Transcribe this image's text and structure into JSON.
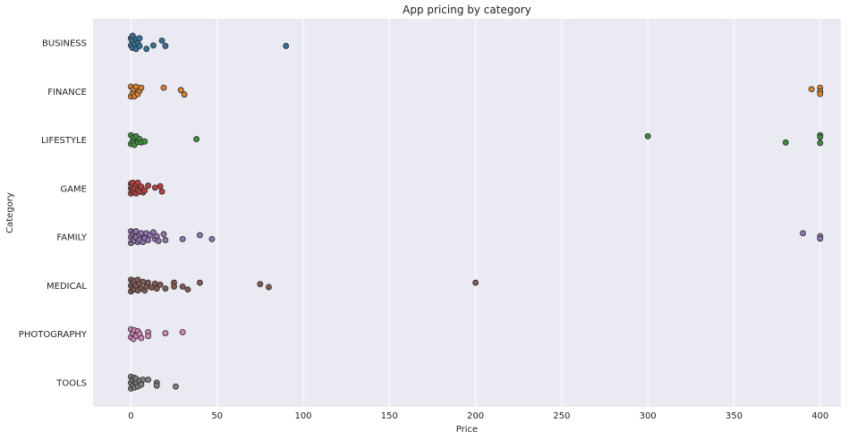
{
  "chart_data": {
    "type": "scatter",
    "title": "App pricing by category",
    "xlabel": "Price",
    "ylabel": "Category",
    "xlim": [
      -22,
      412
    ],
    "xticks": [
      0,
      50,
      100,
      150,
      200,
      250,
      300,
      350,
      400
    ],
    "grid": true,
    "background": "#eaeaf2",
    "categories": [
      "BUSINESS",
      "FINANCE",
      "LIFESTYLE",
      "GAME",
      "FAMILY",
      "MEDICAL",
      "PHOTOGRAPHY",
      "TOOLS"
    ],
    "colors": [
      "#3274a1",
      "#e1812c",
      "#3a923a",
      "#c03d3e",
      "#9372b2",
      "#845b53",
      "#d684bd",
      "#7f7f7f"
    ],
    "series": [
      {
        "category": "BUSINESS",
        "points": [
          {
            "x": 0,
            "j": -0.1
          },
          {
            "x": 0,
            "j": 0.05
          },
          {
            "x": 0.5,
            "j": -0.05
          },
          {
            "x": 1,
            "j": 0.1
          },
          {
            "x": 1,
            "j": -0.15
          },
          {
            "x": 2,
            "j": 0.02
          },
          {
            "x": 3,
            "j": -0.08
          },
          {
            "x": 3,
            "j": 0.12
          },
          {
            "x": 4,
            "j": 0.0
          },
          {
            "x": 5,
            "j": -0.1
          },
          {
            "x": 5,
            "j": 0.06
          },
          {
            "x": 9,
            "j": 0.12
          },
          {
            "x": 13,
            "j": 0.05
          },
          {
            "x": 18,
            "j": -0.05
          },
          {
            "x": 20,
            "j": 0.06
          },
          {
            "x": 90,
            "j": 0.06
          }
        ]
      },
      {
        "category": "FINANCE",
        "points": [
          {
            "x": 0,
            "j": -0.1
          },
          {
            "x": 0,
            "j": 0.1
          },
          {
            "x": 1,
            "j": 0.03
          },
          {
            "x": 1.5,
            "j": -0.05
          },
          {
            "x": 2,
            "j": 0.1
          },
          {
            "x": 3,
            "j": -0.1
          },
          {
            "x": 4,
            "j": 0.05
          },
          {
            "x": 5,
            "j": -0.02
          },
          {
            "x": 6,
            "j": -0.08
          },
          {
            "x": 19,
            "j": -0.08
          },
          {
            "x": 29,
            "j": -0.03
          },
          {
            "x": 31,
            "j": 0.06
          },
          {
            "x": 395,
            "j": -0.05
          },
          {
            "x": 400,
            "j": -0.08
          },
          {
            "x": 400,
            "j": 0.0
          },
          {
            "x": 400,
            "j": 0.05
          }
        ]
      },
      {
        "category": "LIFESTYLE",
        "points": [
          {
            "x": 0,
            "j": -0.1
          },
          {
            "x": 0,
            "j": 0.08
          },
          {
            "x": 1,
            "j": 0.02
          },
          {
            "x": 1.5,
            "j": -0.05
          },
          {
            "x": 2,
            "j": 0.1
          },
          {
            "x": 3,
            "j": -0.08
          },
          {
            "x": 4,
            "j": 0.04
          },
          {
            "x": 5,
            "j": -0.02
          },
          {
            "x": 6,
            "j": 0.05
          },
          {
            "x": 8,
            "j": 0.03
          },
          {
            "x": 38,
            "j": -0.02
          },
          {
            "x": 300,
            "j": -0.08
          },
          {
            "x": 380,
            "j": 0.05
          },
          {
            "x": 400,
            "j": -0.1
          },
          {
            "x": 400,
            "j": -0.06
          },
          {
            "x": 400,
            "j": 0.06
          }
        ]
      },
      {
        "category": "GAME",
        "points": [
          {
            "x": 0,
            "j": -0.1
          },
          {
            "x": 0,
            "j": 0.0
          },
          {
            "x": 0,
            "j": 0.1
          },
          {
            "x": 0.5,
            "j": -0.05
          },
          {
            "x": 1,
            "j": 0.05
          },
          {
            "x": 1,
            "j": -0.12
          },
          {
            "x": 2,
            "j": 0.08
          },
          {
            "x": 2,
            "j": -0.02
          },
          {
            "x": 3,
            "j": 0.1
          },
          {
            "x": 3,
            "j": -0.08
          },
          {
            "x": 4,
            "j": 0.03
          },
          {
            "x": 4,
            "j": -0.12
          },
          {
            "x": 5,
            "j": 0.06
          },
          {
            "x": 6,
            "j": -0.04
          },
          {
            "x": 7,
            "j": 0.08
          },
          {
            "x": 8,
            "j": 0.04
          },
          {
            "x": 10,
            "j": -0.06
          },
          {
            "x": 14,
            "j": -0.02
          },
          {
            "x": 17,
            "j": -0.05
          },
          {
            "x": 18,
            "j": 0.06
          }
        ]
      },
      {
        "category": "FAMILY",
        "points": [
          {
            "x": 0,
            "j": -0.12
          },
          {
            "x": 0,
            "j": 0.0
          },
          {
            "x": 0,
            "j": 0.12
          },
          {
            "x": 1,
            "j": -0.06
          },
          {
            "x": 1,
            "j": 0.06
          },
          {
            "x": 2,
            "j": -0.1
          },
          {
            "x": 2,
            "j": 0.08
          },
          {
            "x": 3,
            "j": 0.0
          },
          {
            "x": 3,
            "j": -0.12
          },
          {
            "x": 4,
            "j": 0.1
          },
          {
            "x": 5,
            "j": -0.04
          },
          {
            "x": 5,
            "j": 0.06
          },
          {
            "x": 6,
            "j": -0.08
          },
          {
            "x": 7,
            "j": 0.1
          },
          {
            "x": 8,
            "j": 0.02
          },
          {
            "x": 9,
            "j": -0.08
          },
          {
            "x": 10,
            "j": 0.06
          },
          {
            "x": 11,
            "j": -0.04
          },
          {
            "x": 13,
            "j": -0.1
          },
          {
            "x": 14,
            "j": 0.04
          },
          {
            "x": 15,
            "j": -0.02
          },
          {
            "x": 16,
            "j": 0.08
          },
          {
            "x": 19,
            "j": -0.06
          },
          {
            "x": 20,
            "j": 0.06
          },
          {
            "x": 30,
            "j": 0.04
          },
          {
            "x": 40,
            "j": -0.04
          },
          {
            "x": 47,
            "j": 0.04
          },
          {
            "x": 390,
            "j": -0.08
          },
          {
            "x": 400,
            "j": -0.02
          },
          {
            "x": 400,
            "j": 0.03
          }
        ]
      },
      {
        "category": "MEDICAL",
        "points": [
          {
            "x": 0,
            "j": -0.12
          },
          {
            "x": 0,
            "j": 0.0
          },
          {
            "x": 0,
            "j": 0.12
          },
          {
            "x": 1,
            "j": -0.06
          },
          {
            "x": 1,
            "j": 0.06
          },
          {
            "x": 2,
            "j": -0.1
          },
          {
            "x": 2,
            "j": 0.08
          },
          {
            "x": 3,
            "j": 0.0
          },
          {
            "x": 4,
            "j": -0.12
          },
          {
            "x": 4,
            "j": 0.1
          },
          {
            "x": 5,
            "j": -0.04
          },
          {
            "x": 6,
            "j": 0.06
          },
          {
            "x": 7,
            "j": -0.08
          },
          {
            "x": 8,
            "j": 0.1
          },
          {
            "x": 9,
            "j": 0.02
          },
          {
            "x": 10,
            "j": -0.06
          },
          {
            "x": 12,
            "j": 0.04
          },
          {
            "x": 14,
            "j": -0.04
          },
          {
            "x": 15,
            "j": 0.06
          },
          {
            "x": 17,
            "j": -0.02
          },
          {
            "x": 20,
            "j": 0.06
          },
          {
            "x": 25,
            "j": -0.06
          },
          {
            "x": 25,
            "j": 0.02
          },
          {
            "x": 30,
            "j": 0.02
          },
          {
            "x": 33,
            "j": 0.08
          },
          {
            "x": 40,
            "j": -0.06
          },
          {
            "x": 75,
            "j": -0.03
          },
          {
            "x": 80,
            "j": 0.03
          },
          {
            "x": 200,
            "j": -0.06
          }
        ]
      },
      {
        "category": "PHOTOGRAPHY",
        "points": [
          {
            "x": 0,
            "j": -0.1
          },
          {
            "x": 0,
            "j": 0.06
          },
          {
            "x": 1,
            "j": -0.02
          },
          {
            "x": 1.5,
            "j": 0.1
          },
          {
            "x": 2,
            "j": -0.08
          },
          {
            "x": 3,
            "j": 0.04
          },
          {
            "x": 4,
            "j": -0.06
          },
          {
            "x": 5,
            "j": 0.0
          },
          {
            "x": 6,
            "j": 0.08
          },
          {
            "x": 10,
            "j": -0.04
          },
          {
            "x": 10,
            "j": 0.04
          },
          {
            "x": 20,
            "j": -0.02
          },
          {
            "x": 30,
            "j": -0.04
          }
        ]
      },
      {
        "category": "TOOLS",
        "points": [
          {
            "x": 0,
            "j": -0.12
          },
          {
            "x": 0,
            "j": 0.0
          },
          {
            "x": 0,
            "j": 0.12
          },
          {
            "x": 1,
            "j": -0.06
          },
          {
            "x": 1,
            "j": 0.06
          },
          {
            "x": 2,
            "j": -0.1
          },
          {
            "x": 2,
            "j": 0.1
          },
          {
            "x": 3,
            "j": 0.0
          },
          {
            "x": 3,
            "j": -0.08
          },
          {
            "x": 4,
            "j": 0.08
          },
          {
            "x": 5,
            "j": -0.04
          },
          {
            "x": 6,
            "j": 0.04
          },
          {
            "x": 7,
            "j": -0.06
          },
          {
            "x": 10,
            "j": -0.06
          },
          {
            "x": 15,
            "j": 0.0
          },
          {
            "x": 15,
            "j": 0.06
          },
          {
            "x": 26,
            "j": 0.08
          }
        ]
      }
    ]
  }
}
